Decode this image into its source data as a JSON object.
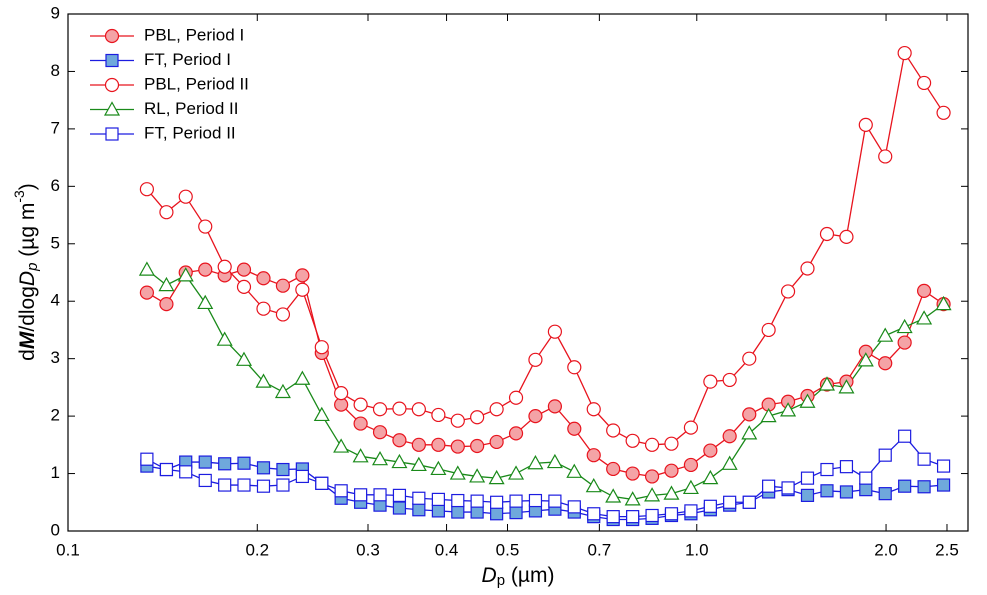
{
  "chart_data": {
    "type": "line",
    "xscale": "log",
    "xlabel_parts": [
      "D",
      "p",
      " (µm)"
    ],
    "ylabel_parts": [
      "d",
      "M",
      "/dlog",
      "D",
      "p",
      " (µg m",
      "-3",
      ")"
    ],
    "xlim": [
      0.1,
      2.7
    ],
    "ylim": [
      0,
      9
    ],
    "xticks": [
      0.1,
      0.2,
      0.3,
      0.4,
      0.5,
      0.7,
      {
        "value": 1,
        "label": "1.0"
      },
      {
        "value": 2,
        "label": "2.0"
      },
      2.5
    ],
    "yticks": [
      0,
      1,
      2,
      3,
      4,
      5,
      6,
      7,
      8,
      9
    ],
    "legend": "upper left",
    "x": [
      0.1335,
      0.1434,
      0.1539,
      0.1653,
      0.1775,
      0.1905,
      0.2046,
      0.2197,
      0.2359,
      0.2533,
      0.2719,
      0.292,
      0.3135,
      0.3366,
      0.3614,
      0.3882,
      0.4168,
      0.4474,
      0.4805,
      0.5159,
      0.5539,
      0.5948,
      0.6386,
      0.6857,
      0.7363,
      0.7907,
      0.849,
      0.9115,
      0.9788,
      1.051,
      1.128,
      1.212,
      1.301,
      1.397,
      1.5,
      1.611,
      1.73,
      1.857,
      1.994,
      2.141,
      2.299,
      2.469
    ],
    "series": [
      {
        "name": "PBL, Period I",
        "color": "#e8141e",
        "marker": "circle",
        "fill": "#f4a3a6",
        "values": [
          4.15,
          3.95,
          4.5,
          4.55,
          4.45,
          4.55,
          4.4,
          4.27,
          4.45,
          3.1,
          2.2,
          1.87,
          1.72,
          1.58,
          1.5,
          1.5,
          1.47,
          1.48,
          1.55,
          1.7,
          2.0,
          2.17,
          1.78,
          1.32,
          1.08,
          1.0,
          0.95,
          1.05,
          1.15,
          1.4,
          1.65,
          2.03,
          2.2,
          2.25,
          2.35,
          2.55,
          2.6,
          3.12,
          2.92,
          3.28,
          4.18,
          3.95
        ]
      },
      {
        "name": "FT, Period I",
        "color": "#1c1ce0",
        "marker": "square",
        "fill": "#6fa8dc",
        "values": [
          1.13,
          1.07,
          1.2,
          1.2,
          1.17,
          1.18,
          1.1,
          1.07,
          1.08,
          0.83,
          0.57,
          0.5,
          0.45,
          0.4,
          0.37,
          0.35,
          0.33,
          0.33,
          0.3,
          0.32,
          0.35,
          0.38,
          0.33,
          0.25,
          0.2,
          0.2,
          0.22,
          0.27,
          0.3,
          0.37,
          0.45,
          0.5,
          0.68,
          0.72,
          0.62,
          0.7,
          0.68,
          0.72,
          0.65,
          0.78,
          0.77,
          0.8
        ]
      },
      {
        "name": "PBL, Period II",
        "color": "#e8141e",
        "marker": "circle",
        "fill": "#ffffff",
        "values": [
          5.95,
          5.55,
          5.82,
          5.3,
          4.6,
          4.25,
          3.87,
          3.77,
          4.2,
          3.2,
          2.4,
          2.2,
          2.12,
          2.13,
          2.12,
          2.02,
          1.92,
          1.98,
          2.12,
          2.32,
          2.98,
          3.47,
          2.85,
          2.12,
          1.75,
          1.57,
          1.5,
          1.52,
          1.8,
          2.6,
          2.63,
          3.0,
          3.5,
          4.17,
          4.57,
          5.17,
          5.12,
          7.07,
          6.52,
          8.32,
          7.8,
          7.28
        ]
      },
      {
        "name": "RL, Period II",
        "color": "#1a8a1a",
        "marker": "triangle",
        "fill": "#ffffff",
        "values": [
          4.55,
          4.28,
          4.45,
          3.97,
          3.33,
          2.98,
          2.6,
          2.42,
          2.65,
          2.02,
          1.47,
          1.3,
          1.25,
          1.2,
          1.15,
          1.08,
          1.0,
          0.95,
          0.92,
          1.0,
          1.18,
          1.2,
          1.03,
          0.78,
          0.6,
          0.55,
          0.62,
          0.65,
          0.75,
          0.92,
          1.17,
          1.7,
          2.0,
          2.1,
          2.25,
          2.55,
          2.5,
          2.97,
          3.4,
          3.55,
          3.7,
          3.95
        ]
      },
      {
        "name": "FT, Period II",
        "color": "#1c1ce0",
        "marker": "square",
        "fill": "#ffffff",
        "values": [
          1.25,
          1.07,
          1.03,
          0.88,
          0.8,
          0.8,
          0.78,
          0.8,
          0.95,
          0.83,
          0.7,
          0.63,
          0.63,
          0.62,
          0.57,
          0.55,
          0.53,
          0.52,
          0.5,
          0.52,
          0.53,
          0.52,
          0.42,
          0.3,
          0.25,
          0.25,
          0.27,
          0.3,
          0.35,
          0.43,
          0.5,
          0.5,
          0.78,
          0.75,
          0.92,
          1.07,
          1.12,
          0.92,
          1.32,
          1.65,
          1.25,
          1.13
        ]
      }
    ]
  }
}
